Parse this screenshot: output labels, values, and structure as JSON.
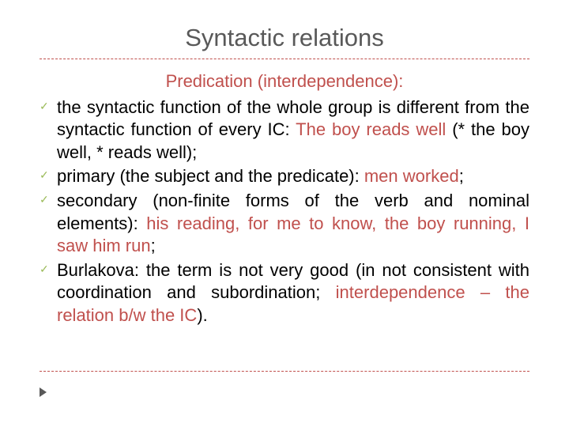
{
  "title": "Syntactic relations",
  "subheading": "Predication (interdependence):",
  "colors": {
    "accent": "#c0504d",
    "title": "#595959",
    "check": "#9bbb59",
    "background": "#ffffff",
    "text": "#000000"
  },
  "typography": {
    "title_fontsize": 31,
    "body_fontsize": 22,
    "subheading_fontsize": 22
  },
  "bullets": [
    {
      "pre": "the syntactic function of the whole group is different from the syntactic function of every IC: ",
      "accent": "The boy reads well",
      "post": " (* the boy well, * reads well);"
    },
    {
      "pre": "primary (the subject and the predicate): ",
      "accent": "men worked",
      "post": ";"
    },
    {
      "pre": "secondary (non-finite forms of the verb and nominal elements): ",
      "accent": "his reading, for me to know, the boy running, I saw him run",
      "post": ";"
    },
    {
      "pre": "Burlakova: the term is not very good (in not consistent with coordination and subordination; ",
      "accent": "interdependence – the relation b/w the IC",
      "post": ")."
    }
  ]
}
